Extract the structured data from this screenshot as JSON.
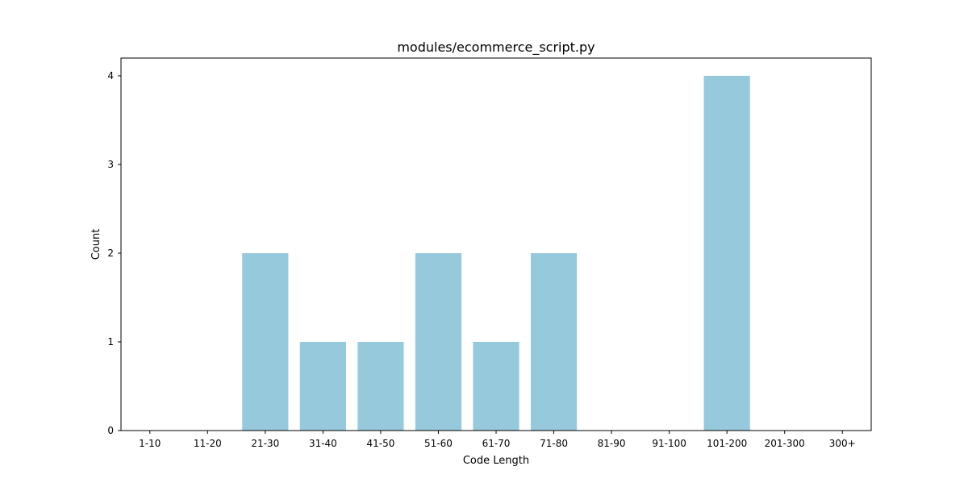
{
  "chart_data": {
    "type": "bar",
    "title": "modules/ecommerce_script.py",
    "xlabel": "Code Length",
    "ylabel": "Count",
    "categories": [
      "1-10",
      "11-20",
      "21-30",
      "31-40",
      "41-50",
      "51-60",
      "61-70",
      "71-80",
      "81-90",
      "91-100",
      "101-200",
      "201-300",
      "300+"
    ],
    "values": [
      0,
      0,
      2,
      1,
      1,
      2,
      1,
      2,
      0,
      0,
      4,
      0,
      0
    ],
    "ylim": [
      0,
      4.2
    ],
    "yticks": [
      0,
      1,
      2,
      3,
      4
    ],
    "bar_color": "#96c9dc",
    "grid": false,
    "legend": "none"
  }
}
